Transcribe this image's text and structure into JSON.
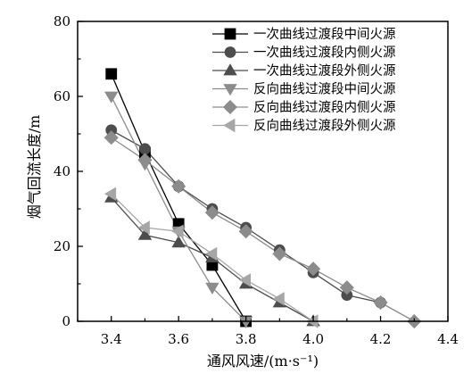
{
  "chart_data": {
    "type": "line",
    "title": "",
    "xlabel": "通风风速/(m·s⁻¹)",
    "ylabel": "烟气回流长度/m",
    "xlim": [
      3.3,
      4.4
    ],
    "ylim": [
      0,
      80
    ],
    "x_ticks": [
      "3.4",
      "3.6",
      "3.8",
      "4.0",
      "4.2",
      "4.4"
    ],
    "y_ticks": [
      "0",
      "20",
      "40",
      "60",
      "80"
    ],
    "grid": false,
    "legend_position": "top-right",
    "series": [
      {
        "name": "一次曲线过渡段中间火源",
        "marker": "square",
        "color": "#000000",
        "x": [
          3.4,
          3.5,
          3.6,
          3.7,
          3.8
        ],
        "y": [
          66,
          45,
          26,
          15,
          0
        ]
      },
      {
        "name": "一次曲线过渡段内侧火源",
        "marker": "circle",
        "color": "#4d4d4d",
        "x": [
          3.4,
          3.5,
          3.6,
          3.7,
          3.8,
          3.9,
          4.0,
          4.1,
          4.2
        ],
        "y": [
          51,
          46,
          36,
          30,
          25,
          19,
          13,
          7,
          5
        ]
      },
      {
        "name": "一次曲线过渡段外侧火源",
        "marker": "triangle-up",
        "color": "#4d4d4d",
        "x": [
          3.4,
          3.5,
          3.6,
          3.7,
          3.8,
          3.9,
          4.0
        ],
        "y": [
          33,
          23,
          21,
          17,
          10,
          5,
          0
        ]
      },
      {
        "name": "反向曲线过渡段中间火源",
        "marker": "triangle-down",
        "color": "#8c8c8c",
        "x": [
          3.4,
          3.5,
          3.6,
          3.7,
          3.8
        ],
        "y": [
          60,
          42,
          24,
          9,
          0
        ]
      },
      {
        "name": "反向曲线过渡段内侧火源",
        "marker": "diamond",
        "color": "#8c8c8c",
        "x": [
          3.4,
          3.5,
          3.6,
          3.7,
          3.8,
          3.9,
          4.0,
          4.1,
          4.2,
          4.3
        ],
        "y": [
          49,
          43,
          36,
          29,
          24,
          18,
          14,
          9,
          5,
          0
        ]
      },
      {
        "name": "反向曲线过渡段外侧火源",
        "marker": "triangle-left",
        "color": "#a6a6a6",
        "x": [
          3.4,
          3.5,
          3.6,
          3.7,
          3.8,
          3.9,
          4.0
        ],
        "y": [
          34,
          25,
          24,
          18,
          11,
          6,
          0
        ]
      }
    ]
  }
}
